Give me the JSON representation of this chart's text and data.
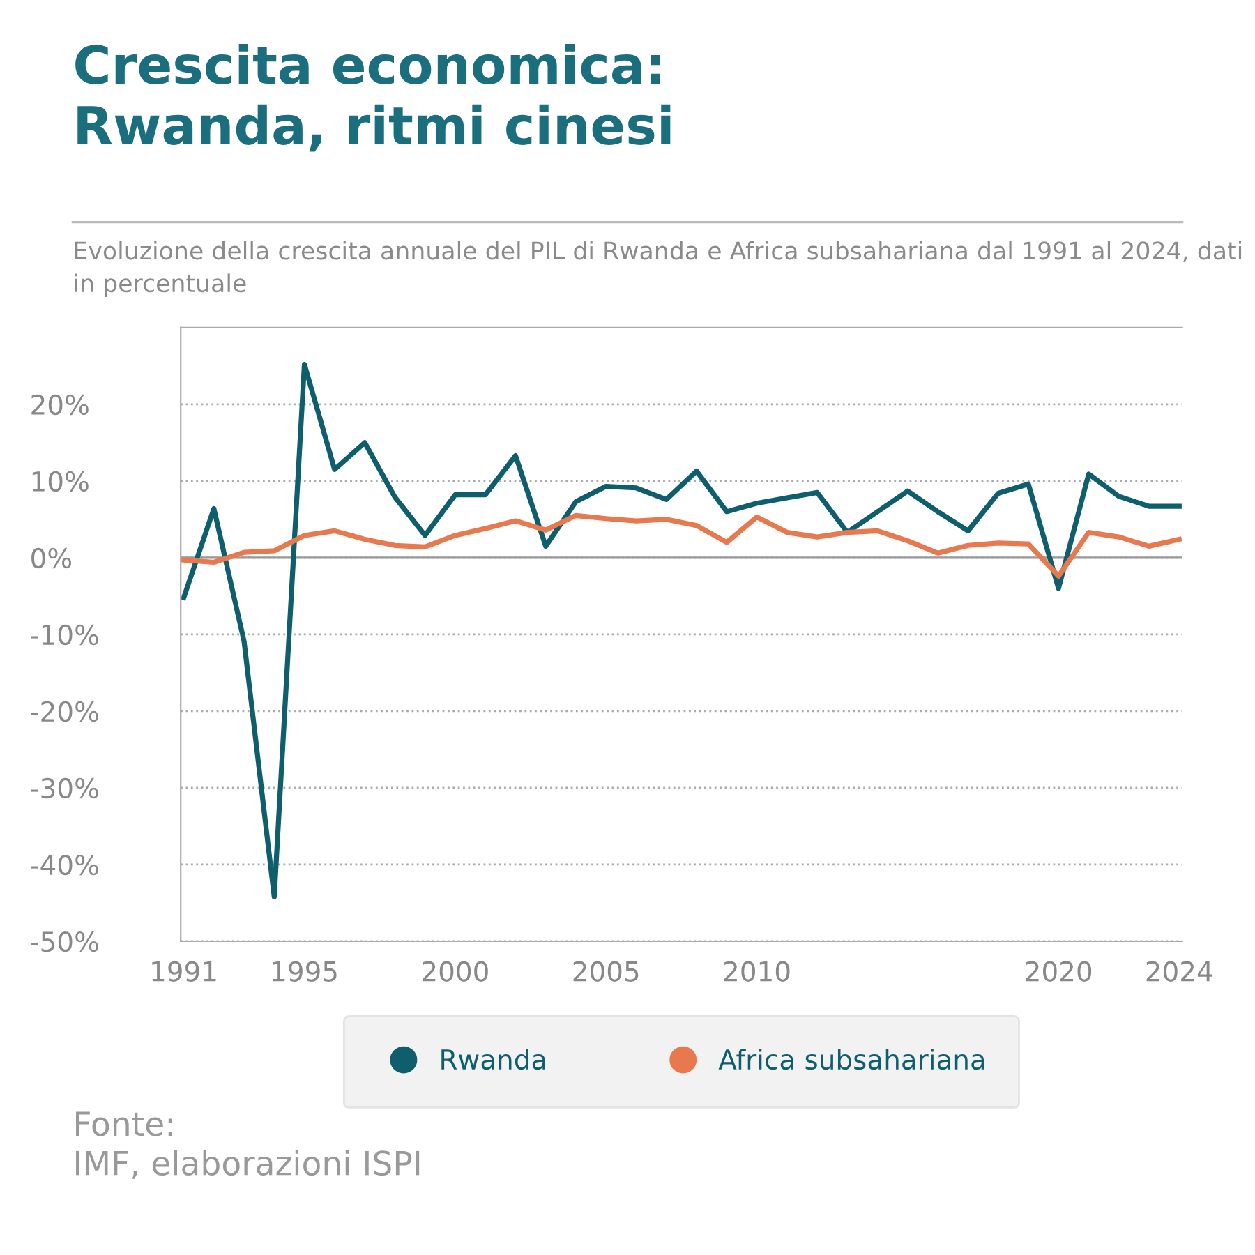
{
  "chart_data": {
    "type": "line",
    "title": "Crescita economica:\nRwanda, ritmi cinesi",
    "subtitle": "Evoluzione della crescita annuale del PIL di Rwanda e Africa subsahariana dal 1991 al 2024, dati in percentuale",
    "x": [
      1991,
      1992,
      1993,
      1994,
      1995,
      1996,
      1997,
      1998,
      1999,
      2000,
      2001,
      2002,
      2003,
      2004,
      2005,
      2006,
      2007,
      2008,
      2009,
      2010,
      2011,
      2012,
      2013,
      2014,
      2015,
      2016,
      2017,
      2018,
      2019,
      2020,
      2021,
      2022,
      2023,
      2024
    ],
    "series": [
      {
        "name": "Rwanda",
        "color": "#0f5e6e",
        "values": [
          -5.2,
          6.4,
          -10.9,
          -44.2,
          25.2,
          11.5,
          15.0,
          7.9,
          2.9,
          8.2,
          8.2,
          13.3,
          1.5,
          7.3,
          9.3,
          9.1,
          7.6,
          11.3,
          6.0,
          7.1,
          7.8,
          8.5,
          3.3,
          6.0,
          8.7,
          6.0,
          3.5,
          8.4,
          9.6,
          -4.0,
          10.9,
          8.0,
          6.7,
          6.7
        ]
      },
      {
        "name": "Africa subsahariana",
        "color": "#e8794f",
        "values": [
          -0.3,
          -0.6,
          0.7,
          0.9,
          2.9,
          3.5,
          2.4,
          1.6,
          1.4,
          2.9,
          3.8,
          4.8,
          3.6,
          5.5,
          5.1,
          4.8,
          5.0,
          4.2,
          2.0,
          5.3,
          3.3,
          2.7,
          3.3,
          3.5,
          2.2,
          0.6,
          1.6,
          1.9,
          1.8,
          -2.4,
          3.3,
          2.7,
          1.5,
          2.4
        ]
      }
    ],
    "xlim": [
      1990.9,
      2024.1
    ],
    "xticks": [
      1991,
      1995,
      2000,
      2005,
      2010,
      2020,
      2024
    ],
    "ylim": [
      -50,
      30
    ],
    "yticks": [
      {
        "value": -50,
        "label": "-50%"
      },
      {
        "value": -40,
        "label": "-40%"
      },
      {
        "value": -30,
        "label": "-30%"
      },
      {
        "value": -20,
        "label": "-20%"
      },
      {
        "value": -10,
        "label": "-10%"
      },
      {
        "value": 0,
        "label": "0%"
      },
      {
        "value": 10,
        "label": "10%"
      },
      {
        "value": 20,
        "label": "20%"
      }
    ],
    "grid": "y",
    "legend": "bottom",
    "marker": "none",
    "line_style": "solid",
    "annotations": [
      "Fonte:\nIMF, elaborazioni ISPI"
    ]
  }
}
